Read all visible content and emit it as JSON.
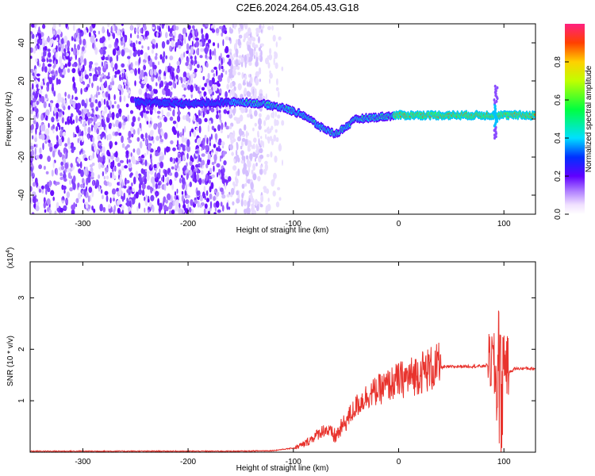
{
  "title": "C2E6.2024.264.05.43.G18",
  "chart_data": [
    {
      "type": "heatmap",
      "name": "spectrogram",
      "xlabel": "Height of straight line (km)",
      "ylabel": "Frequency (Hz)",
      "xlim": [
        -350,
        130
      ],
      "ylim": [
        -50,
        50
      ],
      "xticks": [
        -300,
        -200,
        -100,
        0,
        100
      ],
      "yticks": [
        -40,
        -20,
        0,
        20,
        40
      ],
      "colorbar": {
        "label": "Normalized spectral amplitude",
        "range": [
          0,
          1
        ],
        "ticks": [
          "0.0",
          "0.2",
          "0.4",
          "0.6",
          "0.8"
        ],
        "colormap": "rainbow"
      },
      "ridge": {
        "x": [
          -330,
          -250,
          -200,
          -150,
          -130,
          -110,
          -90,
          -75,
          -60,
          -50,
          -40,
          -20,
          0,
          50,
          85,
          95,
          110,
          130
        ],
        "y": [
          12,
          9,
          8,
          9,
          8,
          6,
          2,
          -4,
          -8,
          -4,
          0,
          1,
          2,
          2,
          2,
          2,
          2,
          2
        ]
      },
      "noise_floor_end_x": -130
    },
    {
      "type": "line",
      "name": "snr",
      "xlabel": "Height of straight line (km)",
      "ylabel": "SNR (10 * v/v)",
      "y_multiplier": "(x10",
      "y_multiplier_exp": "4",
      "y_multiplier_close": ")",
      "xlim": [
        -350,
        130
      ],
      "ylim": [
        0,
        3.7
      ],
      "xticks": [
        -300,
        -200,
        -100,
        0,
        100
      ],
      "yticks": [
        1,
        2,
        3
      ],
      "color": "#e8332d",
      "series": [
        {
          "x": [
            -350,
            -300,
            -250,
            -200,
            -150,
            -120,
            -100,
            -90,
            -80,
            -70,
            -60,
            -50,
            -40,
            -30,
            -20,
            -10,
            0,
            10,
            20,
            30,
            40,
            50,
            60,
            70,
            80,
            85,
            90,
            93,
            95,
            97,
            100,
            105,
            110,
            120,
            130
          ],
          "y": [
            0.02,
            0.02,
            0.02,
            0.02,
            0.02,
            0.03,
            0.08,
            0.15,
            0.3,
            0.45,
            0.3,
            0.6,
            0.9,
            1.1,
            1.2,
            1.3,
            1.4,
            1.45,
            1.55,
            1.62,
            1.65,
            1.66,
            1.67,
            1.67,
            1.67,
            1.7,
            1.8,
            1.2,
            2.2,
            0.7,
            1.9,
            1.55,
            1.62,
            1.63,
            1.62
          ]
        }
      ]
    }
  ]
}
